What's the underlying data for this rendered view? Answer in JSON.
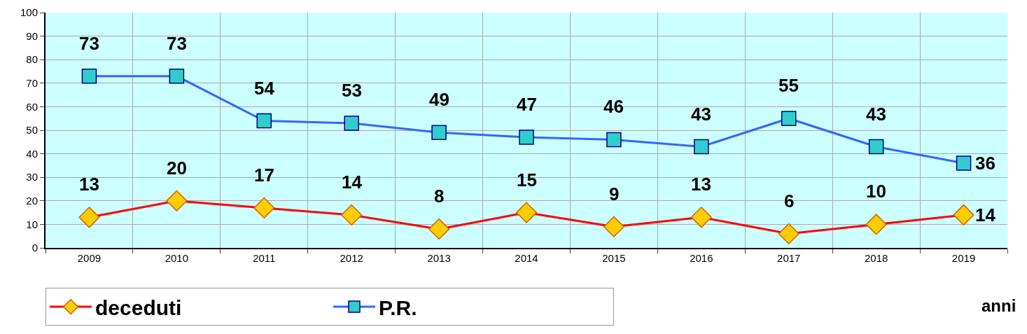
{
  "chart_data": {
    "type": "line",
    "xlabel": "anni",
    "categories": [
      "2009",
      "2010",
      "2011",
      "2012",
      "2013",
      "2014",
      "2015",
      "2016",
      "2017",
      "2018",
      "2019"
    ],
    "series": [
      {
        "name": "deceduti",
        "color": "#ff0000",
        "marker": "diamond",
        "values": [
          13,
          20,
          17,
          14,
          8,
          15,
          9,
          13,
          6,
          10,
          14
        ]
      },
      {
        "name": "P.R.",
        "color": "#3366ff",
        "marker": "square",
        "values": [
          73,
          73,
          54,
          53,
          49,
          47,
          46,
          43,
          55,
          43,
          36
        ]
      }
    ],
    "ylim": [
      0,
      100
    ],
    "yticks": [
      0,
      10,
      20,
      30,
      40,
      50,
      60,
      70,
      80,
      90,
      100
    ],
    "grid": true,
    "legend": "bottom left",
    "data_labels": true
  }
}
